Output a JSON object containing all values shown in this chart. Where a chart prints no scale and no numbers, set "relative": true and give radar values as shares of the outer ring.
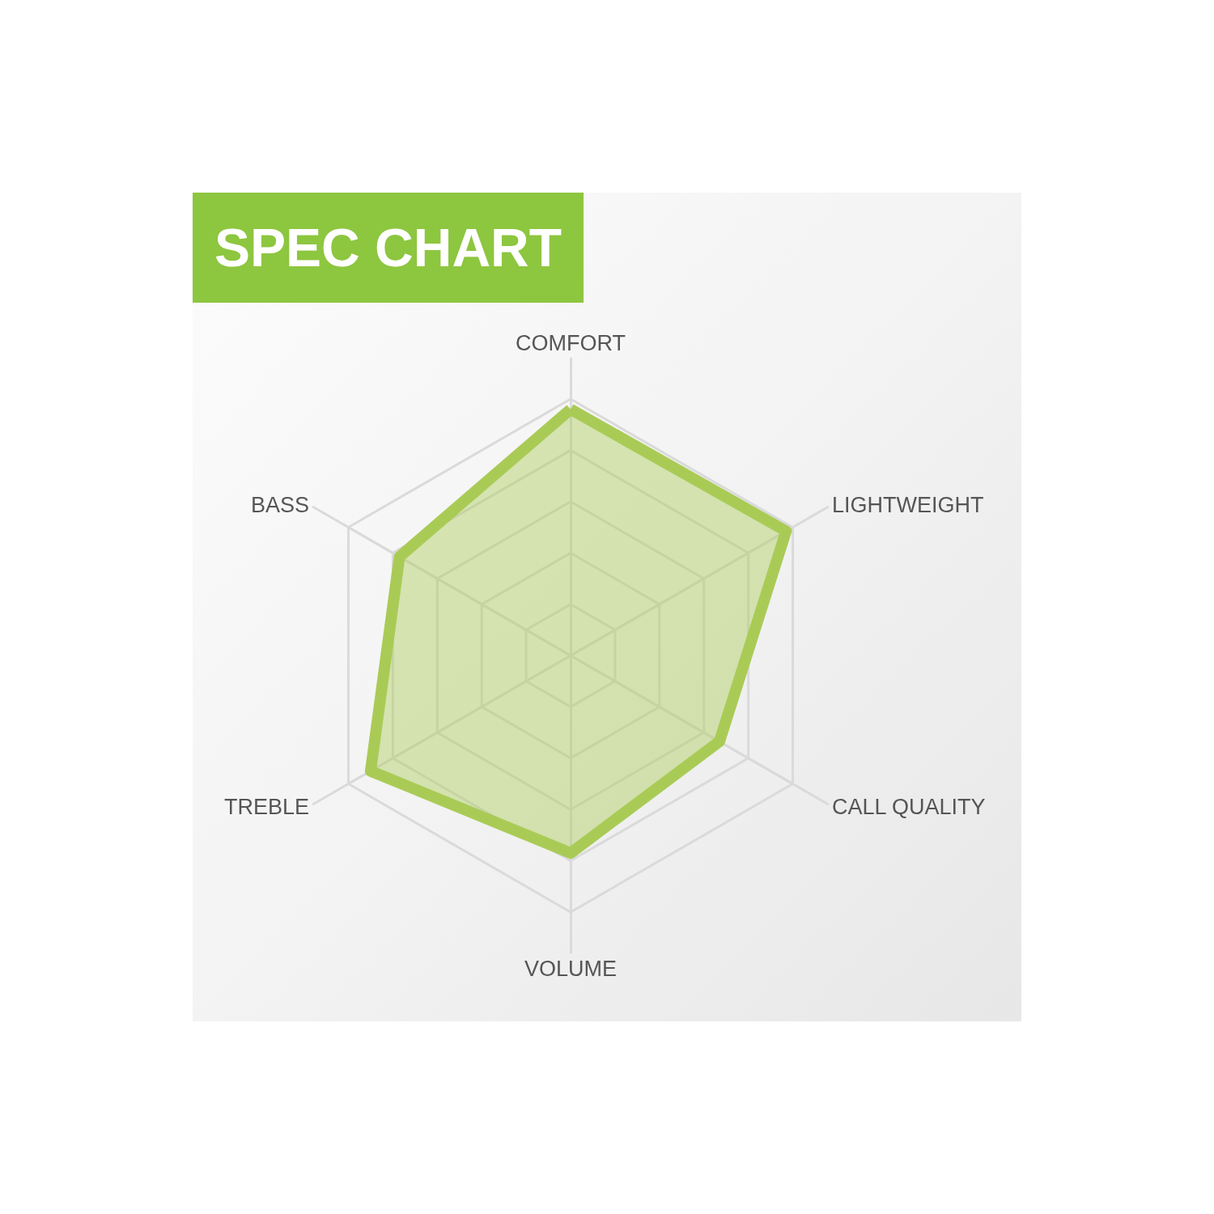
{
  "chart_data": {
    "type": "radar",
    "title": "SPEC CHART",
    "categories": [
      "COMFORT",
      "LIGHTWEIGHT",
      "CALL QUALITY",
      "VOLUME",
      "TREBLE",
      "BASS"
    ],
    "relative": true,
    "series": [
      {
        "color": "#a9cb56",
        "values": [
          0.96,
          0.97,
          0.67,
          0.77,
          0.9,
          0.77
        ]
      }
    ],
    "grid": true,
    "marker": "none"
  }
}
